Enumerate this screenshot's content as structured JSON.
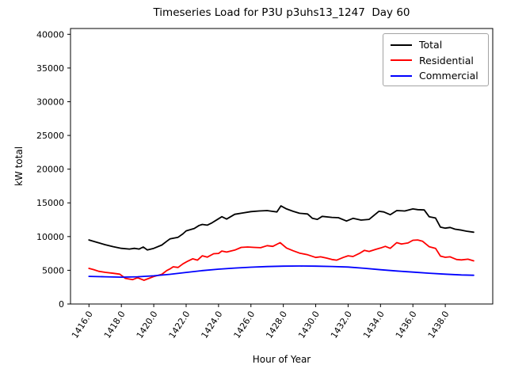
{
  "chart_data": {
    "type": "line",
    "title": "Timeseries Load for P3U p3uhs13_1247  Day 60",
    "xlabel": "Hour of Year",
    "ylabel": "kW total",
    "xlim": [
      1414.86,
      1440.93
    ],
    "ylim": [
      0,
      40860
    ],
    "grid": false,
    "legend_position": "upper right",
    "x_ticks": [
      1416,
      1418,
      1420,
      1422,
      1424,
      1426,
      1428,
      1430,
      1432,
      1434,
      1436,
      1438
    ],
    "x_tick_labels": [
      "1416.0",
      "1418.0",
      "1420.0",
      "1422.0",
      "1424.0",
      "1426.0",
      "1428.0",
      "1430.0",
      "1432.0",
      "1434.0",
      "1436.0",
      "1438.0"
    ],
    "y_ticks": [
      0,
      5000,
      10000,
      15000,
      20000,
      25000,
      30000,
      35000,
      40000
    ],
    "y_tick_labels": [
      "0",
      "5000",
      "10000",
      "15000",
      "20000",
      "25000",
      "30000",
      "35000",
      "40000"
    ],
    "series": [
      {
        "name": "Total",
        "color": "#000000",
        "points": [
          [
            1416,
            9500
          ],
          [
            1416.5,
            9150
          ],
          [
            1417,
            8800
          ],
          [
            1417.5,
            8500
          ],
          [
            1418,
            8250
          ],
          [
            1418.5,
            8150
          ],
          [
            1418.8,
            8250
          ],
          [
            1419.1,
            8150
          ],
          [
            1419.35,
            8450
          ],
          [
            1419.6,
            8020
          ],
          [
            1420,
            8250
          ],
          [
            1420.5,
            8750
          ],
          [
            1420.8,
            9300
          ],
          [
            1421,
            9650
          ],
          [
            1421.5,
            9900
          ],
          [
            1421.8,
            10400
          ],
          [
            1422,
            10850
          ],
          [
            1422.5,
            11200
          ],
          [
            1422.8,
            11650
          ],
          [
            1423,
            11800
          ],
          [
            1423.3,
            11700
          ],
          [
            1423.6,
            12050
          ],
          [
            1424,
            12650
          ],
          [
            1424.2,
            12950
          ],
          [
            1424.5,
            12600
          ],
          [
            1425,
            13300
          ],
          [
            1425.5,
            13500
          ],
          [
            1426,
            13700
          ],
          [
            1426.5,
            13800
          ],
          [
            1427,
            13850
          ],
          [
            1427.3,
            13750
          ],
          [
            1427.6,
            13650
          ],
          [
            1427.85,
            14550
          ],
          [
            1428.2,
            14100
          ],
          [
            1428.6,
            13750
          ],
          [
            1429,
            13450
          ],
          [
            1429.5,
            13350
          ],
          [
            1429.8,
            12700
          ],
          [
            1430.1,
            12550
          ],
          [
            1430.4,
            13000
          ],
          [
            1431,
            12850
          ],
          [
            1431.4,
            12800
          ],
          [
            1431.9,
            12300
          ],
          [
            1432.3,
            12700
          ],
          [
            1432.8,
            12450
          ],
          [
            1433.3,
            12550
          ],
          [
            1433.9,
            13750
          ],
          [
            1434.2,
            13650
          ],
          [
            1434.6,
            13250
          ],
          [
            1435,
            13850
          ],
          [
            1435.5,
            13800
          ],
          [
            1436,
            14100
          ],
          [
            1436.3,
            14000
          ],
          [
            1436.7,
            13950
          ],
          [
            1437,
            12950
          ],
          [
            1437.4,
            12750
          ],
          [
            1437.7,
            11400
          ],
          [
            1438,
            11250
          ],
          [
            1438.3,
            11350
          ],
          [
            1438.6,
            11100
          ],
          [
            1439,
            10950
          ],
          [
            1439.3,
            10800
          ],
          [
            1439.75,
            10650
          ]
        ]
      },
      {
        "name": "Residential",
        "color": "#ff0000",
        "points": [
          [
            1416,
            5280
          ],
          [
            1416.3,
            5100
          ],
          [
            1416.6,
            4850
          ],
          [
            1417,
            4700
          ],
          [
            1417.5,
            4550
          ],
          [
            1417.9,
            4430
          ],
          [
            1418.25,
            3800
          ],
          [
            1418.7,
            3620
          ],
          [
            1419,
            3900
          ],
          [
            1419.4,
            3520
          ],
          [
            1419.7,
            3800
          ],
          [
            1420,
            4080
          ],
          [
            1420.5,
            4400
          ],
          [
            1420.8,
            4950
          ],
          [
            1421,
            5200
          ],
          [
            1421.2,
            5520
          ],
          [
            1421.5,
            5420
          ],
          [
            1421.8,
            5950
          ],
          [
            1422.1,
            6350
          ],
          [
            1422.4,
            6700
          ],
          [
            1422.7,
            6500
          ],
          [
            1423,
            7150
          ],
          [
            1423.3,
            6950
          ],
          [
            1423.7,
            7450
          ],
          [
            1424,
            7500
          ],
          [
            1424.2,
            7850
          ],
          [
            1424.5,
            7700
          ],
          [
            1425,
            8000
          ],
          [
            1425.4,
            8400
          ],
          [
            1425.8,
            8450
          ],
          [
            1426.2,
            8400
          ],
          [
            1426.6,
            8350
          ],
          [
            1427,
            8650
          ],
          [
            1427.35,
            8550
          ],
          [
            1427.8,
            9100
          ],
          [
            1428.2,
            8300
          ],
          [
            1428.6,
            7900
          ],
          [
            1429,
            7550
          ],
          [
            1429.5,
            7300
          ],
          [
            1430,
            6900
          ],
          [
            1430.3,
            7000
          ],
          [
            1430.7,
            6800
          ],
          [
            1431,
            6600
          ],
          [
            1431.3,
            6500
          ],
          [
            1431.7,
            6900
          ],
          [
            1432,
            7150
          ],
          [
            1432.3,
            7050
          ],
          [
            1432.7,
            7500
          ],
          [
            1433,
            7950
          ],
          [
            1433.3,
            7800
          ],
          [
            1433.7,
            8100
          ],
          [
            1434,
            8300
          ],
          [
            1434.3,
            8550
          ],
          [
            1434.6,
            8250
          ],
          [
            1435,
            9100
          ],
          [
            1435.3,
            8900
          ],
          [
            1435.7,
            9050
          ],
          [
            1436,
            9450
          ],
          [
            1436.3,
            9500
          ],
          [
            1436.6,
            9300
          ],
          [
            1437,
            8500
          ],
          [
            1437.4,
            8250
          ],
          [
            1437.7,
            7100
          ],
          [
            1438,
            6930
          ],
          [
            1438.3,
            7000
          ],
          [
            1438.7,
            6600
          ],
          [
            1439,
            6540
          ],
          [
            1439.4,
            6650
          ],
          [
            1439.75,
            6400
          ]
        ]
      },
      {
        "name": "Commercial",
        "color": "#0000ff",
        "points": [
          [
            1416,
            4100
          ],
          [
            1417,
            4040
          ],
          [
            1418,
            3980
          ],
          [
            1419,
            4040
          ],
          [
            1420,
            4180
          ],
          [
            1421,
            4400
          ],
          [
            1422,
            4680
          ],
          [
            1423,
            4950
          ],
          [
            1424,
            5170
          ],
          [
            1425,
            5330
          ],
          [
            1426,
            5460
          ],
          [
            1427,
            5550
          ],
          [
            1428,
            5610
          ],
          [
            1429,
            5630
          ],
          [
            1430,
            5610
          ],
          [
            1431,
            5560
          ],
          [
            1432,
            5480
          ],
          [
            1433,
            5300
          ],
          [
            1434,
            5080
          ],
          [
            1435,
            4900
          ],
          [
            1436,
            4730
          ],
          [
            1437,
            4570
          ],
          [
            1438,
            4430
          ],
          [
            1439,
            4310
          ],
          [
            1439.75,
            4260
          ]
        ]
      }
    ]
  }
}
